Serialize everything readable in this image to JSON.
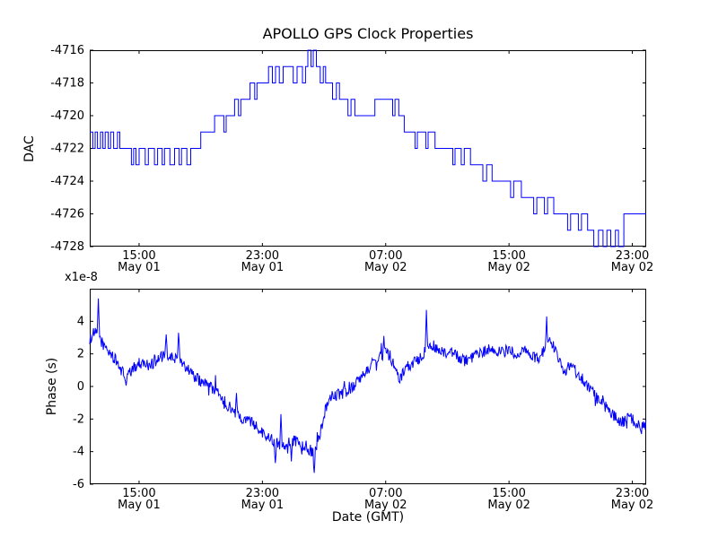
{
  "figure": {
    "title": "APOLLO GPS Clock Properties",
    "background_color": "#ffffff",
    "line_color": "#0000ff",
    "axes_color": "#000000"
  },
  "chart_data": [
    {
      "type": "line",
      "subplot": "top",
      "title": "APOLLO GPS Clock Properties",
      "ylabel": "DAC",
      "line_style": "step",
      "grid": false,
      "legend": "none",
      "ylim": [
        -4728,
        -4716
      ],
      "yticks": [
        -4716,
        -4718,
        -4720,
        -4722,
        -4724,
        -4726,
        -4728
      ],
      "xlim_hours": [
        11.8,
        47.9
      ],
      "xticks_hours": [
        15,
        23,
        31,
        39,
        47
      ],
      "xtick_labels": [
        [
          "15:00",
          "May 01"
        ],
        [
          "23:00",
          "May 01"
        ],
        [
          "07:00",
          "May 02"
        ],
        [
          "15:00",
          "May 02"
        ],
        [
          "23:00",
          "May 02"
        ]
      ],
      "points": [
        [
          11.8,
          -4721
        ],
        [
          12.0,
          -4722
        ],
        [
          12.15,
          -4721
        ],
        [
          12.3,
          -4722
        ],
        [
          12.5,
          -4721
        ],
        [
          12.65,
          -4722
        ],
        [
          12.8,
          -4721
        ],
        [
          13.0,
          -4722
        ],
        [
          13.15,
          -4721
        ],
        [
          13.35,
          -4722
        ],
        [
          13.6,
          -4721
        ],
        [
          13.75,
          -4722
        ],
        [
          14.5,
          -4723
        ],
        [
          14.65,
          -4722
        ],
        [
          14.8,
          -4723
        ],
        [
          15.0,
          -4722
        ],
        [
          15.4,
          -4723
        ],
        [
          15.6,
          -4722
        ],
        [
          16.0,
          -4723
        ],
        [
          16.2,
          -4722
        ],
        [
          16.5,
          -4723
        ],
        [
          16.65,
          -4722
        ],
        [
          17.0,
          -4723
        ],
        [
          17.3,
          -4722
        ],
        [
          17.6,
          -4723
        ],
        [
          17.75,
          -4722
        ],
        [
          18.1,
          -4723
        ],
        [
          18.35,
          -4722
        ],
        [
          19.0,
          -4721
        ],
        [
          19.9,
          -4720
        ],
        [
          20.5,
          -4721
        ],
        [
          20.65,
          -4720
        ],
        [
          21.2,
          -4719
        ],
        [
          21.45,
          -4720
        ],
        [
          21.6,
          -4719
        ],
        [
          22.2,
          -4718
        ],
        [
          22.5,
          -4719
        ],
        [
          22.65,
          -4718
        ],
        [
          23.4,
          -4717
        ],
        [
          23.65,
          -4718
        ],
        [
          23.85,
          -4717
        ],
        [
          24.1,
          -4718
        ],
        [
          24.35,
          -4717
        ],
        [
          25.0,
          -4718
        ],
        [
          25.25,
          -4717
        ],
        [
          25.6,
          -4718
        ],
        [
          25.8,
          -4717
        ],
        [
          25.95,
          -4716
        ],
        [
          26.15,
          -4717
        ],
        [
          26.3,
          -4716
        ],
        [
          26.5,
          -4717
        ],
        [
          26.75,
          -4718
        ],
        [
          26.95,
          -4717
        ],
        [
          27.1,
          -4718
        ],
        [
          27.55,
          -4719
        ],
        [
          27.8,
          -4718
        ],
        [
          28.0,
          -4719
        ],
        [
          28.55,
          -4720
        ],
        [
          28.75,
          -4719
        ],
        [
          29.0,
          -4720
        ],
        [
          29.9,
          -4720
        ],
        [
          30.3,
          -4719
        ],
        [
          31.2,
          -4719
        ],
        [
          31.45,
          -4720
        ],
        [
          31.6,
          -4719
        ],
        [
          31.85,
          -4720
        ],
        [
          32.2,
          -4721
        ],
        [
          32.9,
          -4722
        ],
        [
          33.05,
          -4721
        ],
        [
          33.6,
          -4722
        ],
        [
          33.75,
          -4721
        ],
        [
          34.2,
          -4722
        ],
        [
          35.0,
          -4722
        ],
        [
          35.35,
          -4723
        ],
        [
          35.5,
          -4722
        ],
        [
          35.9,
          -4723
        ],
        [
          36.1,
          -4722
        ],
        [
          36.5,
          -4723
        ],
        [
          37.3,
          -4724
        ],
        [
          37.55,
          -4723
        ],
        [
          37.9,
          -4724
        ],
        [
          38.7,
          -4724
        ],
        [
          39.1,
          -4725
        ],
        [
          39.3,
          -4724
        ],
        [
          39.8,
          -4725
        ],
        [
          40.6,
          -4726
        ],
        [
          40.8,
          -4725
        ],
        [
          41.3,
          -4726
        ],
        [
          41.5,
          -4725
        ],
        [
          41.9,
          -4726
        ],
        [
          42.8,
          -4727
        ],
        [
          43.0,
          -4726
        ],
        [
          43.5,
          -4727
        ],
        [
          43.7,
          -4726
        ],
        [
          44.1,
          -4727
        ],
        [
          44.5,
          -4728
        ],
        [
          44.8,
          -4727
        ],
        [
          45.1,
          -4728
        ],
        [
          45.35,
          -4727
        ],
        [
          45.6,
          -4728
        ],
        [
          45.9,
          -4727
        ],
        [
          46.1,
          -4728
        ],
        [
          46.45,
          -4726
        ],
        [
          47.9,
          -4726
        ]
      ]
    },
    {
      "type": "line",
      "subplot": "bottom",
      "ylabel": "Phase (s)",
      "xlabel": "Date (GMT)",
      "offset_text": "x1e-8",
      "units": "1e-8 s",
      "line_style": "noisy",
      "grid": false,
      "legend": "none",
      "ylim": [
        -6,
        6
      ],
      "yticks": [
        4,
        2,
        0,
        -2,
        -4,
        -6
      ],
      "xlim_hours": [
        11.8,
        47.9
      ],
      "xticks_hours": [
        15,
        23,
        31,
        39,
        47
      ],
      "xtick_labels": [
        [
          "15:00",
          "May 01"
        ],
        [
          "23:00",
          "May 01"
        ],
        [
          "07:00",
          "May 02"
        ],
        [
          "15:00",
          "May 02"
        ],
        [
          "23:00",
          "May 02"
        ]
      ],
      "noise_amplitude": 0.36,
      "keypoints": [
        [
          11.8,
          2.9
        ],
        [
          12.1,
          3.3
        ],
        [
          12.4,
          3.1
        ],
        [
          12.7,
          2.5
        ],
        [
          13.0,
          2.2
        ],
        [
          13.4,
          1.7
        ],
        [
          13.8,
          1.1
        ],
        [
          14.1,
          0.6
        ],
        [
          14.4,
          0.8
        ],
        [
          14.8,
          1.3
        ],
        [
          15.2,
          1.5
        ],
        [
          15.6,
          1.3
        ],
        [
          16.0,
          1.5
        ],
        [
          16.4,
          1.8
        ],
        [
          16.8,
          1.9
        ],
        [
          17.2,
          1.7
        ],
        [
          17.6,
          1.8
        ],
        [
          18.0,
          1.3
        ],
        [
          18.5,
          0.7
        ],
        [
          19.0,
          0.3
        ],
        [
          19.5,
          0.1
        ],
        [
          20.0,
          -0.3
        ],
        [
          20.5,
          -0.9
        ],
        [
          21.0,
          -1.4
        ],
        [
          21.5,
          -1.8
        ],
        [
          22.0,
          -2.1
        ],
        [
          22.5,
          -2.3
        ],
        [
          23.0,
          -2.8
        ],
        [
          23.5,
          -3.2
        ],
        [
          23.9,
          -3.4
        ],
        [
          24.3,
          -3.6
        ],
        [
          24.7,
          -3.5
        ],
        [
          25.1,
          -3.3
        ],
        [
          25.5,
          -3.5
        ],
        [
          25.9,
          -3.7
        ],
        [
          26.2,
          -4.0
        ],
        [
          26.5,
          -3.9
        ],
        [
          26.8,
          -2.6
        ],
        [
          27.1,
          -1.4
        ],
        [
          27.4,
          -0.8
        ],
        [
          27.8,
          -0.5
        ],
        [
          28.2,
          -0.4
        ],
        [
          28.6,
          -0.2
        ],
        [
          29.0,
          0.1
        ],
        [
          29.4,
          0.5
        ],
        [
          29.8,
          1.0
        ],
        [
          30.2,
          1.5
        ],
        [
          30.6,
          1.8
        ],
        [
          31.0,
          2.0
        ],
        [
          31.3,
          1.9
        ],
        [
          31.6,
          1.0
        ],
        [
          31.9,
          0.5
        ],
        [
          32.2,
          0.9
        ],
        [
          32.5,
          1.3
        ],
        [
          32.9,
          1.5
        ],
        [
          33.3,
          1.9
        ],
        [
          33.7,
          2.3
        ],
        [
          34.1,
          2.5
        ],
        [
          34.5,
          2.2
        ],
        [
          34.9,
          1.9
        ],
        [
          35.3,
          2.1
        ],
        [
          35.7,
          1.8
        ],
        [
          36.1,
          1.6
        ],
        [
          36.5,
          1.6
        ],
        [
          36.9,
          1.9
        ],
        [
          37.3,
          2.1
        ],
        [
          37.7,
          2.3
        ],
        [
          38.1,
          2.2
        ],
        [
          38.5,
          2.1
        ],
        [
          38.9,
          2.2
        ],
        [
          39.3,
          2.1
        ],
        [
          39.7,
          2.0
        ],
        [
          40.1,
          2.2
        ],
        [
          40.5,
          1.9
        ],
        [
          40.9,
          1.7
        ],
        [
          41.3,
          2.2
        ],
        [
          41.7,
          2.9
        ],
        [
          42.0,
          2.2
        ],
        [
          42.3,
          1.4
        ],
        [
          42.6,
          0.9
        ],
        [
          42.9,
          1.3
        ],
        [
          43.2,
          1.1
        ],
        [
          43.6,
          0.6
        ],
        [
          44.0,
          0.2
        ],
        [
          44.4,
          -0.3
        ],
        [
          44.8,
          -0.8
        ],
        [
          45.2,
          -1.2
        ],
        [
          45.6,
          -1.6
        ],
        [
          46.0,
          -2.0
        ],
        [
          46.4,
          -2.2
        ],
        [
          46.8,
          -1.9
        ],
        [
          47.2,
          -2.2
        ],
        [
          47.6,
          -2.6
        ],
        [
          47.9,
          -2.3
        ]
      ],
      "spikes": [
        [
          12.35,
          5.4
        ],
        [
          14.15,
          0.05
        ],
        [
          16.75,
          3.2
        ],
        [
          17.55,
          3.3
        ],
        [
          21.3,
          -0.4
        ],
        [
          23.85,
          -4.7
        ],
        [
          24.2,
          -1.7
        ],
        [
          24.9,
          -4.6
        ],
        [
          26.35,
          -5.3
        ],
        [
          30.9,
          3.1
        ],
        [
          33.65,
          4.7
        ],
        [
          41.45,
          4.3
        ]
      ]
    }
  ]
}
